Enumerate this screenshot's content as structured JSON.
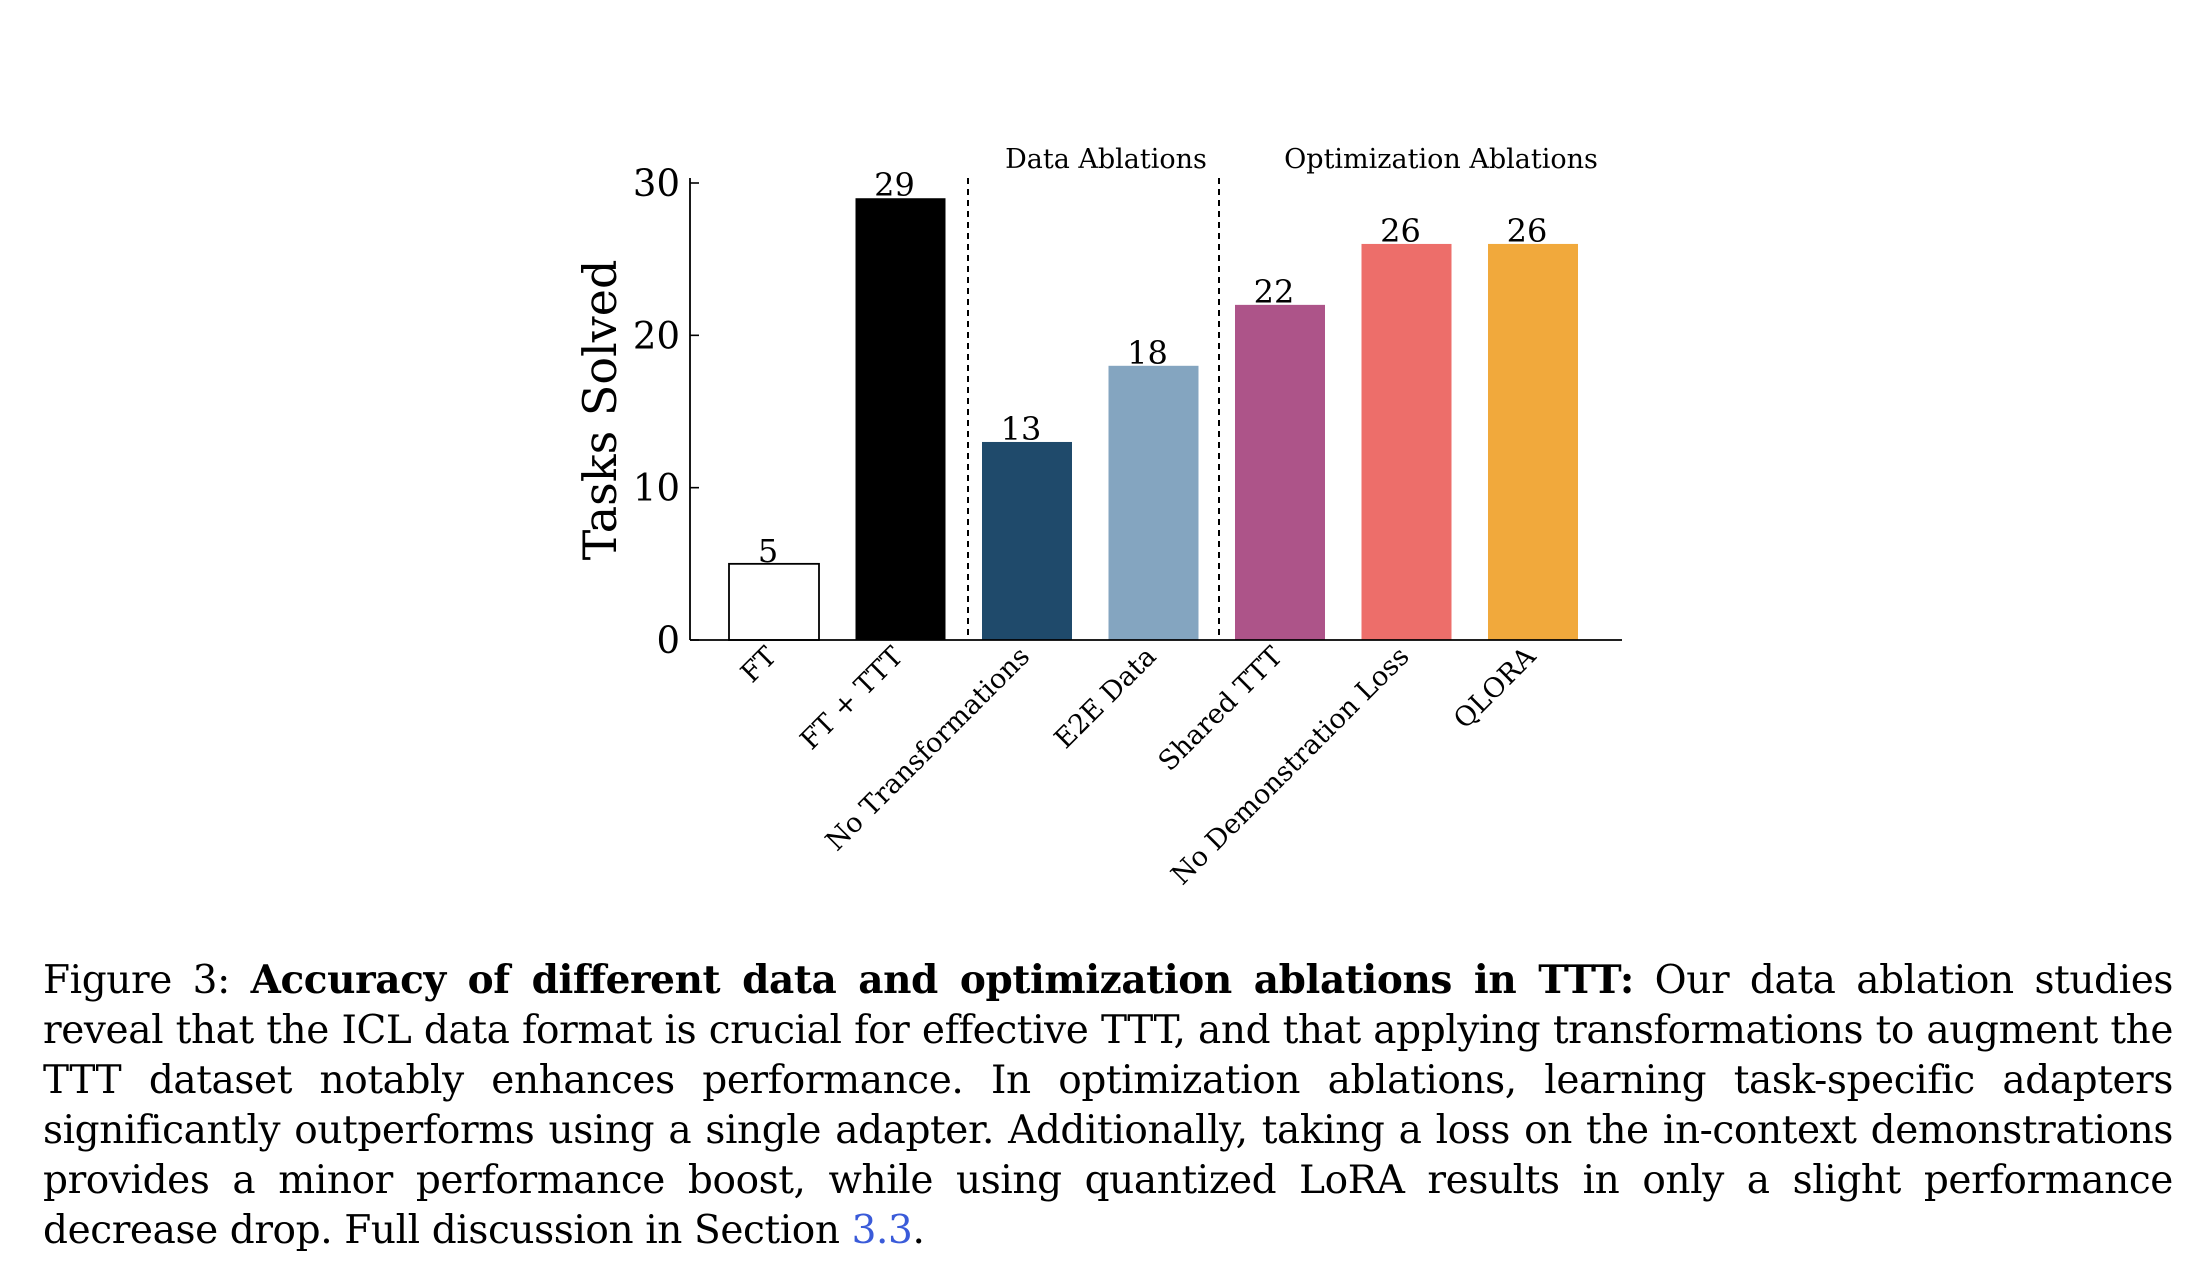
{
  "chart_data": {
    "type": "bar",
    "categories": [
      "FT",
      "FT + TTT",
      "No Transformations",
      "E2E Data",
      "Shared TTT",
      "No Demonstration Loss",
      "QLORA"
    ],
    "values": [
      5,
      29,
      13,
      18,
      22,
      26,
      26
    ],
    "data_labels": [
      "5",
      "29",
      "13",
      "18",
      "22",
      "26",
      "26"
    ],
    "colors": [
      "#ffffff",
      "#000000",
      "#1f4a6b",
      "#84a5c0",
      "#ad5489",
      "#ed6e6a",
      "#f1a93c"
    ],
    "ylabel": "Tasks Solved",
    "ylim": [
      0,
      30
    ],
    "yticks": [
      "0",
      "10",
      "20",
      "30"
    ],
    "group_labels": [
      "Data Ablations",
      "Optimization Ablations"
    ],
    "grid": false
  },
  "caption": {
    "prefix": "Figure 3: ",
    "bold": "Accuracy of different data and optimization ablations in TTT:",
    "body": " Our data ablation studies reveal that the ICL data format is crucial for effective TTT, and that applying transformations to augment the TTT dataset notably enhances performance. In optimization ablations, learning task-specific adapters significantly outperforms using a single adapter. Additionally, taking a loss on the in-context demonstrations provides a minor performance boost, while using quantized LoRA results in only a slight performance decrease drop. Full discussion in Section ",
    "ref": "3.3",
    "suffix": "."
  }
}
